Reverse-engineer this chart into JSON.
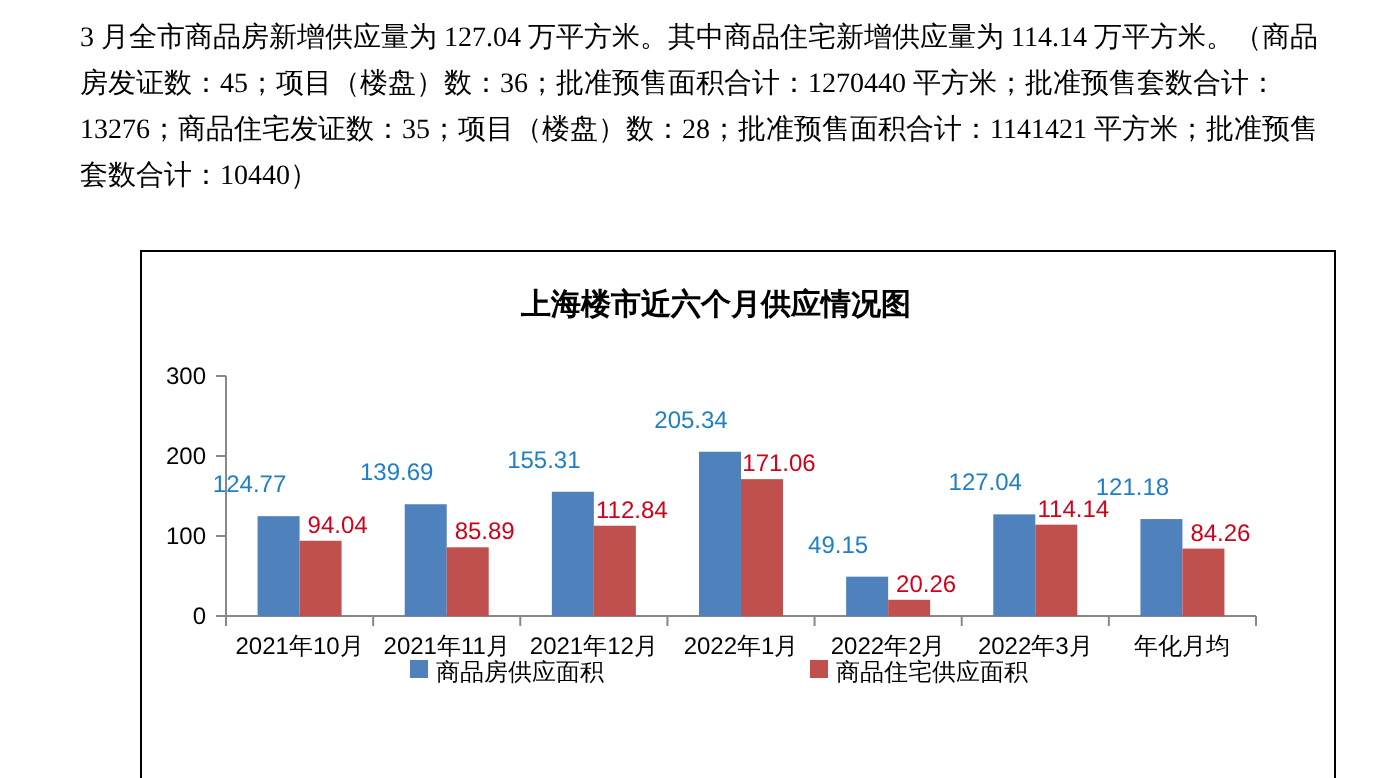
{
  "chart_data": {
    "type": "bar",
    "title": "上海楼市近六个月供应情况图",
    "annotations": [
      "3 月全市商品房新增供应量为 127.04 万平方米。其中商品住宅新增供应量为 114.14 万平方米。（商品房发证数：45；项目（楼盘）数：36；批准预售面积合计：1270440 平方米；批准预售套数合计：13276；商品住宅发证数：35；项目（楼盘）数：28；批准预售面积合计：1141421 平方米；批准预售套数合计：10440）"
    ],
    "categories": [
      "2021年10月",
      "2021年11月",
      "2021年12月",
      "2022年1月",
      "2022年2月",
      "2022年3月",
      "年化月均"
    ],
    "series": [
      {
        "name": "商品房供应面积",
        "color": "#4f81bd",
        "values": [
          124.77,
          139.69,
          155.31,
          205.34,
          49.15,
          127.04,
          121.18
        ]
      },
      {
        "name": "商品住宅供应面积",
        "color": "#c0504d",
        "values": [
          94.04,
          85.89,
          112.84,
          171.06,
          20.26,
          114.14,
          84.26
        ]
      }
    ],
    "ylim": [
      0,
      300
    ],
    "yticks": [
      0,
      100,
      200,
      300
    ],
    "grid": false,
    "legend": "bottom",
    "data_labels": true
  }
}
